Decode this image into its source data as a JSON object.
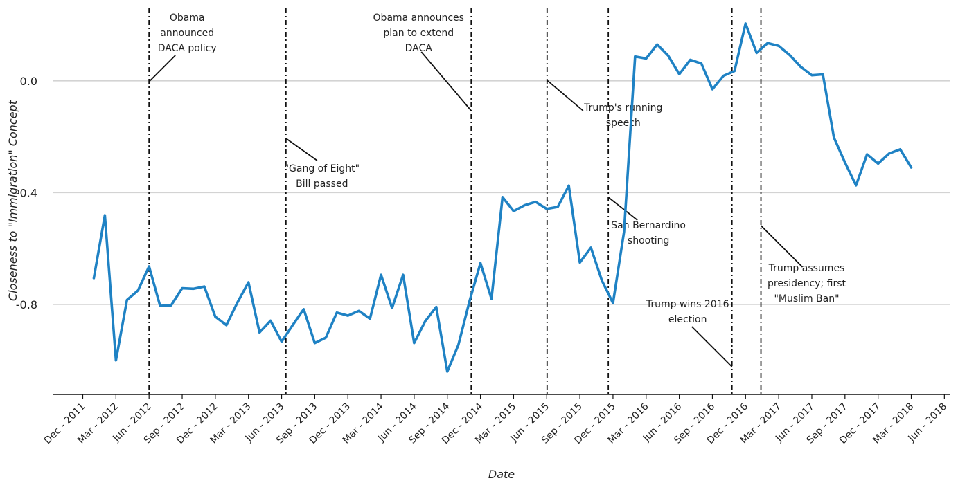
{
  "chart_data": {
    "type": "line",
    "xlabel": "Date",
    "ylabel": "Closeness to \"Immigration\" Concept",
    "ylim": [
      -1.06,
      0.2
    ],
    "y_ticks": [
      0.0,
      -0.4,
      -0.8
    ],
    "y_tick_labels": [
      "0.0",
      "-0.4",
      "-0.8"
    ],
    "grid": "horizontal",
    "x_tick_labels": [
      "Dec - 2011",
      "Mar - 2012",
      "Jun - 2012",
      "Sep - 2012",
      "Dec - 2012",
      "Mar - 2013",
      "Jun - 2013",
      "Sep - 2013",
      "Dec - 2013",
      "Mar - 2014",
      "Jun - 2014",
      "Sep - 2014",
      "Dec - 2014",
      "Mar - 2015",
      "Jun - 2015",
      "Sep - 2015",
      "Dec - 2015",
      "Mar - 2016",
      "Jun - 2016",
      "Sep - 2016",
      "Dec - 2016",
      "Mar - 2017",
      "Jun - 2017",
      "Sep - 2017",
      "Dec - 2017",
      "Mar - 2018",
      "Jun - 2018"
    ],
    "line_color": "#1f82c4",
    "series": [
      {
        "values": [
          {
            "x": "2012-01",
            "y": -0.706
          },
          {
            "x": "2012-02",
            "y": -0.481
          },
          {
            "x": "2012-03",
            "y": -1.0
          },
          {
            "x": "2012-04",
            "y": -0.784
          },
          {
            "x": "2012-05",
            "y": -0.75
          },
          {
            "x": "2012-06",
            "y": -0.664
          },
          {
            "x": "2012-07",
            "y": -0.805
          },
          {
            "x": "2012-08",
            "y": -0.803
          },
          {
            "x": "2012-09",
            "y": -0.742
          },
          {
            "x": "2012-10",
            "y": -0.744
          },
          {
            "x": "2012-11",
            "y": -0.736
          },
          {
            "x": "2012-12",
            "y": -0.844
          },
          {
            "x": "2013-01",
            "y": -0.874
          },
          {
            "x": "2013-02",
            "y": -0.793
          },
          {
            "x": "2013-03",
            "y": -0.721
          },
          {
            "x": "2013-04",
            "y": -0.9
          },
          {
            "x": "2013-05",
            "y": -0.858
          },
          {
            "x": "2013-06",
            "y": -0.933
          },
          {
            "x": "2013-07",
            "y": -0.874
          },
          {
            "x": "2013-08",
            "y": -0.817
          },
          {
            "x": "2013-09",
            "y": -0.938
          },
          {
            "x": "2013-10",
            "y": -0.919
          },
          {
            "x": "2013-11",
            "y": -0.829
          },
          {
            "x": "2013-12",
            "y": -0.84
          },
          {
            "x": "2014-01",
            "y": -0.823
          },
          {
            "x": "2014-02",
            "y": -0.851
          },
          {
            "x": "2014-03",
            "y": -0.694
          },
          {
            "x": "2014-04",
            "y": -0.813
          },
          {
            "x": "2014-05",
            "y": -0.694
          },
          {
            "x": "2014-06",
            "y": -0.938
          },
          {
            "x": "2014-07",
            "y": -0.86
          },
          {
            "x": "2014-08",
            "y": -0.809
          },
          {
            "x": "2014-09",
            "y": -1.04
          },
          {
            "x": "2014-10",
            "y": -0.945
          },
          {
            "x": "2014-11",
            "y": -0.79
          },
          {
            "x": "2014-12",
            "y": -0.652
          },
          {
            "x": "2015-01",
            "y": -0.78
          },
          {
            "x": "2015-02",
            "y": -0.416
          },
          {
            "x": "2015-03",
            "y": -0.466
          },
          {
            "x": "2015-04",
            "y": -0.445
          },
          {
            "x": "2015-05",
            "y": -0.433
          },
          {
            "x": "2015-06",
            "y": -0.458
          },
          {
            "x": "2015-07",
            "y": -0.451
          },
          {
            "x": "2015-08",
            "y": -0.375
          },
          {
            "x": "2015-09",
            "y": -0.65
          },
          {
            "x": "2015-10",
            "y": -0.597
          },
          {
            "x": "2015-11",
            "y": -0.715
          },
          {
            "x": "2015-12",
            "y": -0.795
          },
          {
            "x": "2016-01",
            "y": -0.54
          },
          {
            "x": "2016-02",
            "y": 0.087
          },
          {
            "x": "2016-03",
            "y": 0.08
          },
          {
            "x": "2016-04",
            "y": 0.13
          },
          {
            "x": "2016-05",
            "y": 0.09
          },
          {
            "x": "2016-06",
            "y": 0.024
          },
          {
            "x": "2016-07",
            "y": 0.075
          },
          {
            "x": "2016-08",
            "y": 0.062
          },
          {
            "x": "2016-09",
            "y": -0.03
          },
          {
            "x": "2016-10",
            "y": 0.018
          },
          {
            "x": "2016-11",
            "y": 0.035
          },
          {
            "x": "2016-12",
            "y": 0.205
          },
          {
            "x": "2017-01",
            "y": 0.1
          },
          {
            "x": "2017-02",
            "y": 0.135
          },
          {
            "x": "2017-03",
            "y": 0.125
          },
          {
            "x": "2017-04",
            "y": 0.092
          },
          {
            "x": "2017-05",
            "y": 0.05
          },
          {
            "x": "2017-06",
            "y": 0.02
          },
          {
            "x": "2017-07",
            "y": 0.023
          },
          {
            "x": "2017-08",
            "y": -0.203
          },
          {
            "x": "2017-09",
            "y": -0.292
          },
          {
            "x": "2017-10",
            "y": -0.374
          },
          {
            "x": "2017-11",
            "y": -0.263
          },
          {
            "x": "2017-12",
            "y": -0.296
          },
          {
            "x": "2018-01",
            "y": -0.26
          },
          {
            "x": "2018-02",
            "y": -0.245
          },
          {
            "x": "2018-03",
            "y": -0.31
          }
        ]
      }
    ],
    "events": [
      {
        "date": "2012-06-15",
        "label": [
          "Obama",
          "announced",
          "DACA policy"
        ]
      },
      {
        "date": "2013-06-27",
        "label": [
          "\"Gang of Eight\"",
          "Bill passed"
        ]
      },
      {
        "date": "2014-11-20",
        "label": [
          "Obama announces",
          "plan to extend",
          "DACA"
        ]
      },
      {
        "date": "2015-06-16",
        "label": [
          "Trump's running",
          "speech"
        ]
      },
      {
        "date": "2015-12-02",
        "label": [
          "San Bernardino",
          "shooting"
        ]
      },
      {
        "date": "2016-11-08",
        "label": [
          "Trump wins 2016",
          "election"
        ]
      },
      {
        "date": "2017-01-27",
        "label": [
          "Trump assumes",
          "presidency; first",
          "\"Muslim Ban\""
        ]
      }
    ]
  }
}
